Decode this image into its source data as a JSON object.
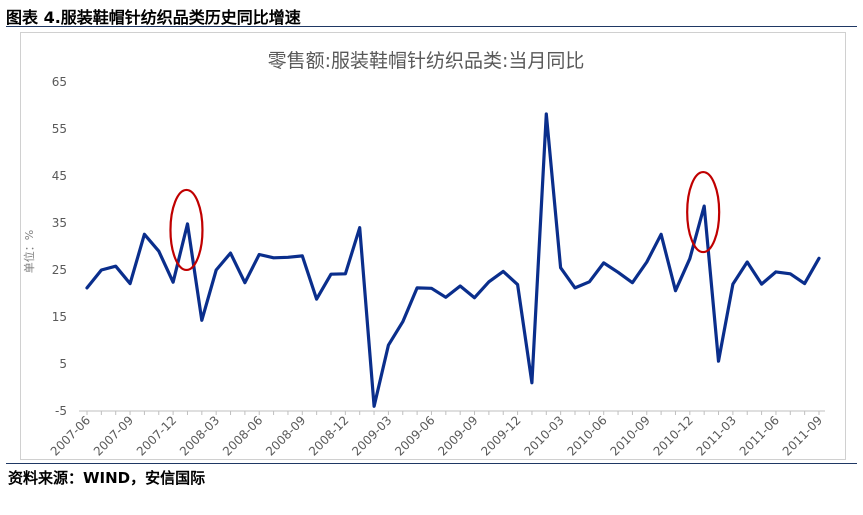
{
  "figure_title": "图表 4.服装鞋帽针纺织品类历史同比增速",
  "source": "资料来源：WIND，安信国际",
  "colors": {
    "line": "#0a2e8c",
    "circle": "#c00000",
    "axis": "#bfbfbf",
    "text": "#595959"
  },
  "chart_data": {
    "type": "line",
    "title": "零售额:服装鞋帽针纺织品类:当月同比",
    "ylabel": "单位：%",
    "xlabel": "",
    "ylim": [
      -5,
      65
    ],
    "yticks": [
      -5,
      5,
      15,
      25,
      35,
      45,
      55,
      65
    ],
    "grid": false,
    "legend": "none",
    "xtick_labels": [
      "2007-06",
      "2007-09",
      "2007-12",
      "2008-03",
      "2008-06",
      "2008-09",
      "2008-12",
      "2009-03",
      "2009-06",
      "2009-09",
      "2009-12",
      "2010-03",
      "2010-06",
      "2010-09",
      "2010-12",
      "2011-03",
      "2011-06",
      "2011-09"
    ],
    "x": [
      "2007-06",
      "2007-07",
      "2007-08",
      "2007-09",
      "2007-10",
      "2007-11",
      "2007-12",
      "2008-01",
      "2008-02",
      "2008-03",
      "2008-04",
      "2008-05",
      "2008-06",
      "2008-07",
      "2008-08",
      "2008-09",
      "2008-10",
      "2008-11",
      "2008-12",
      "2009-01",
      "2009-02",
      "2009-03",
      "2009-04",
      "2009-05",
      "2009-06",
      "2009-07",
      "2009-08",
      "2009-09",
      "2009-10",
      "2009-11",
      "2009-12",
      "2010-01",
      "2010-02",
      "2010-03",
      "2010-04",
      "2010-05",
      "2010-06",
      "2010-07",
      "2010-08",
      "2010-09",
      "2010-10",
      "2010-11",
      "2010-12",
      "2011-01",
      "2011-02",
      "2011-03",
      "2011-04",
      "2011-05",
      "2011-06",
      "2011-07",
      "2011-08",
      "2011-09"
    ],
    "series": [
      {
        "values": [
          21.2,
          25.0,
          25.8,
          22.1,
          32.6,
          29.0,
          22.4,
          34.8,
          14.3,
          25.0,
          28.6,
          22.3,
          28.3,
          27.6,
          27.7,
          28.0,
          18.8,
          24.1,
          24.2,
          34.0,
          -4.0,
          9.0,
          14.0,
          21.2,
          21.1,
          19.2,
          21.6,
          19.1,
          22.5,
          24.7,
          21.9,
          1.0,
          58.2,
          25.5,
          21.2,
          22.5,
          26.5,
          24.5,
          22.3,
          26.7,
          32.6,
          20.6,
          27.4,
          38.6,
          5.6,
          22.0,
          26.7,
          22.0,
          24.6,
          24.2,
          22.1,
          27.5
        ]
      }
    ],
    "annotations": [
      {
        "type": "ellipse",
        "at": "2008-01"
      },
      {
        "type": "ellipse",
        "at": "2011-01"
      }
    ]
  }
}
